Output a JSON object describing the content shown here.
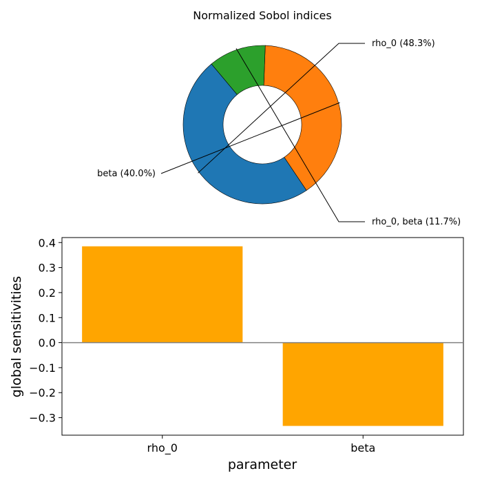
{
  "chart_data": [
    {
      "type": "pie",
      "title": "Normalized Sobol indices",
      "labels": [
        "rho_0  (48.3%)",
        "beta  (40.0%)",
        "rho_0,  beta  (11.7%)"
      ],
      "values": [
        48.3,
        40.0,
        11.7
      ],
      "colors": [
        "#1f77b4",
        "#ff7f0e",
        "#2ca02c"
      ],
      "donut": true
    },
    {
      "type": "bar",
      "categories": [
        "rho_0",
        "beta"
      ],
      "values": [
        0.385,
        -0.333
      ],
      "bar_color": "#ffa500",
      "xlabel": "parameter",
      "ylabel": "global sensitivities",
      "ylim": [
        -0.37,
        0.42
      ],
      "yticks": [
        "0.4",
        "0.3",
        "0.2",
        "0.1",
        "0.0",
        "−0.1",
        "−0.2",
        "−0.3"
      ],
      "zero_line": true
    }
  ]
}
